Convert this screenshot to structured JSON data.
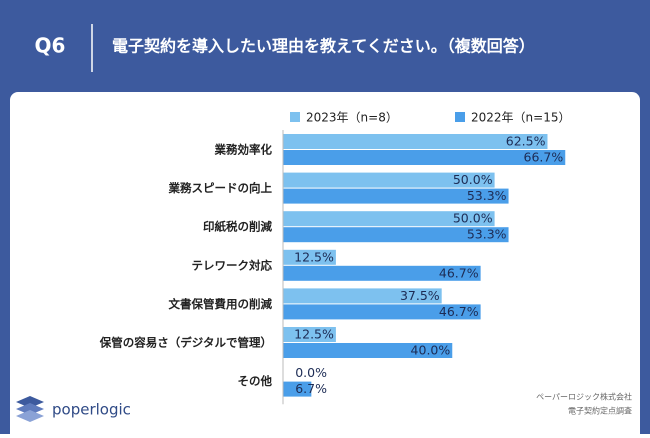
{
  "header": {
    "question": "Q6",
    "title": "電子契約を導入したい理由を教えてください。（複数回答）"
  },
  "chart_data": {
    "type": "hbar",
    "categories": [
      "業務効率化",
      "業務スピードの向上",
      "印紙税の削減",
      "テレワーク対応",
      "文書保管費用の削減",
      "保管の容易さ（デジタルで管理）",
      "その他"
    ],
    "series": [
      {
        "name": "2023年（n=8）",
        "color": "#7dc1ef",
        "values": [
          62.5,
          50.0,
          50.0,
          12.5,
          37.5,
          12.5,
          0.0
        ],
        "value_labels": [
          "62.5%",
          "50.0%",
          "50.0%",
          "12.5%",
          "37.5%",
          "12.5%",
          "0.0%"
        ]
      },
      {
        "name": "2022年（n=15）",
        "color": "#4a9ee9",
        "values": [
          66.7,
          53.3,
          53.3,
          46.7,
          46.7,
          40.0,
          6.7
        ],
        "value_labels": [
          "66.7%",
          "53.3%",
          "53.3%",
          "46.7%",
          "46.7%",
          "40.0%",
          "6.7%"
        ]
      }
    ],
    "xlim": [
      0,
      82
    ]
  },
  "footer": {
    "logo": "poperlogic",
    "company": "ペーパーロジック株式会社",
    "survey": "電子契約定点調査"
  }
}
